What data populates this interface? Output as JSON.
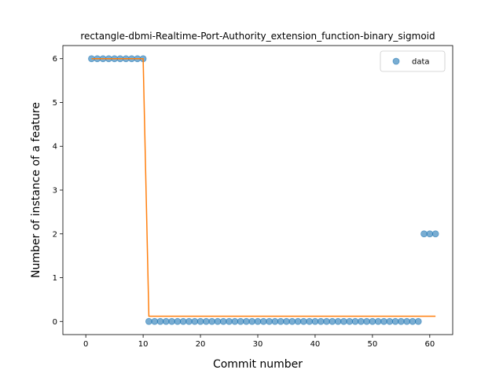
{
  "chart_data": {
    "type": "scatter",
    "title": "rectangle-dbmi-Realtime-Port-Authority_extension_function-binary_sigmoid",
    "xlabel": "Commit number",
    "ylabel": "Number of instance of a feature",
    "xlim": [
      -4,
      64
    ],
    "ylim": [
      -0.3,
      6.3
    ],
    "xticks": [
      0,
      10,
      20,
      30,
      40,
      50,
      60
    ],
    "yticks": [
      0,
      1,
      2,
      3,
      4,
      5,
      6
    ],
    "grid": false,
    "legend": {
      "placement": "top-right",
      "entries": [
        "data"
      ]
    },
    "series": [
      {
        "name": "data",
        "kind": "scatter",
        "color": "#1f77b4",
        "x": [
          1,
          2,
          3,
          4,
          5,
          6,
          7,
          8,
          9,
          10,
          11,
          12,
          13,
          14,
          15,
          16,
          17,
          18,
          19,
          20,
          21,
          22,
          23,
          24,
          25,
          26,
          27,
          28,
          29,
          30,
          31,
          32,
          33,
          34,
          35,
          36,
          37,
          38,
          39,
          40,
          41,
          42,
          43,
          44,
          45,
          46,
          47,
          48,
          49,
          50,
          51,
          52,
          53,
          54,
          55,
          56,
          57,
          58,
          59,
          60,
          61
        ],
        "y": [
          6,
          6,
          6,
          6,
          6,
          6,
          6,
          6,
          6,
          6,
          0,
          0,
          0,
          0,
          0,
          0,
          0,
          0,
          0,
          0,
          0,
          0,
          0,
          0,
          0,
          0,
          0,
          0,
          0,
          0,
          0,
          0,
          0,
          0,
          0,
          0,
          0,
          0,
          0,
          0,
          0,
          0,
          0,
          0,
          0,
          0,
          0,
          0,
          0,
          0,
          0,
          0,
          0,
          0,
          0,
          0,
          0,
          0,
          2,
          2,
          2
        ]
      },
      {
        "kind": "line",
        "color": "#ff7f0e",
        "x": [
          1,
          10,
          11,
          61
        ],
        "y": [
          6,
          6,
          0.12,
          0.12
        ]
      }
    ]
  }
}
